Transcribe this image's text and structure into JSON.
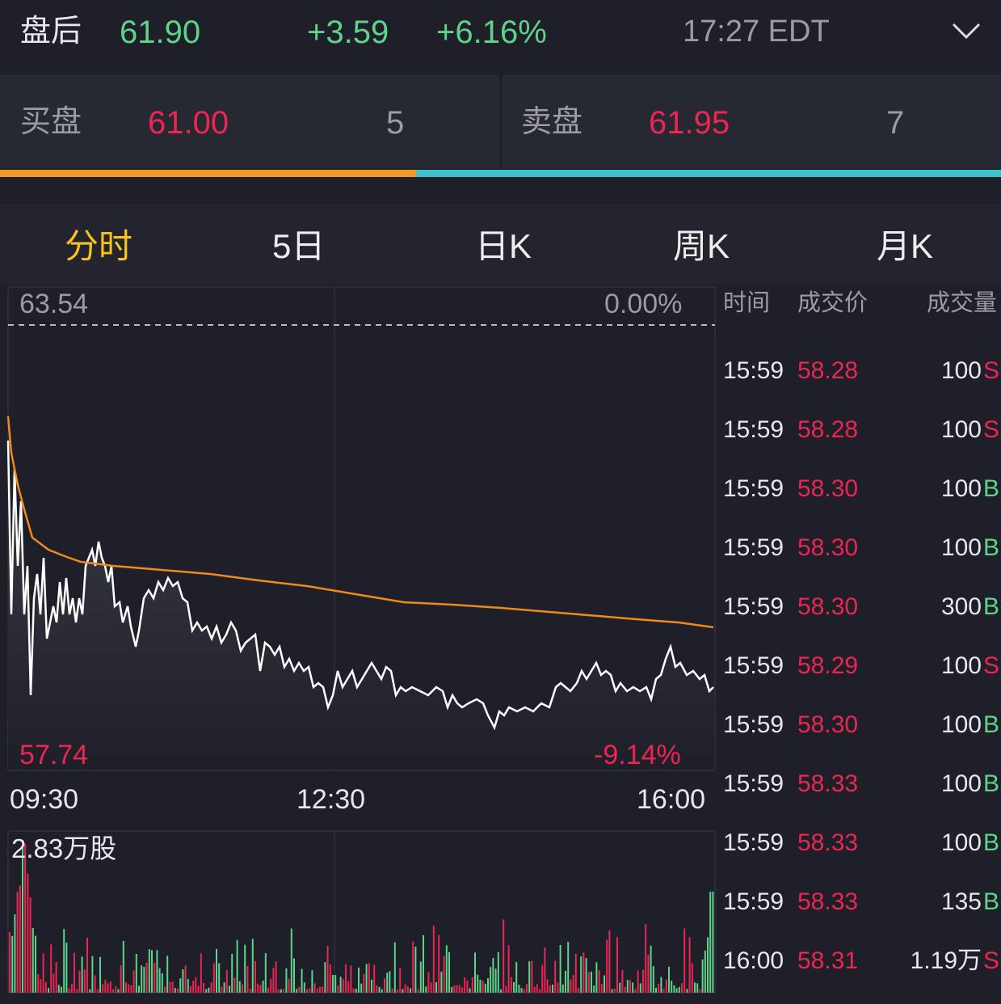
{
  "header": {
    "session": "盘后",
    "price": "61.90",
    "change": "+3.59",
    "change_pct": "+6.16%",
    "time": "17:27 EDT"
  },
  "bid": {
    "label": "买盘",
    "price": "61.00",
    "size": "5"
  },
  "ask": {
    "label": "卖盘",
    "price": "61.95",
    "size": "7"
  },
  "tabs": [
    "分时",
    "5日",
    "日K",
    "周K",
    "月K"
  ],
  "chart": {
    "high": "63.54",
    "high_pct": "0.00%",
    "low": "57.74",
    "low_pct": "-9.14%",
    "times": [
      "09:30",
      "12:30",
      "16:00"
    ],
    "volume_max": "2.83万股"
  },
  "trades": {
    "columns": [
      "时间",
      "成交价",
      "成交量"
    ],
    "rows": [
      [
        "15:59",
        "58.28",
        "100",
        "S"
      ],
      [
        "15:59",
        "58.28",
        "100",
        "S"
      ],
      [
        "15:59",
        "58.30",
        "100",
        "B"
      ],
      [
        "15:59",
        "58.30",
        "100",
        "B"
      ],
      [
        "15:59",
        "58.30",
        "300",
        "B"
      ],
      [
        "15:59",
        "58.29",
        "100",
        "S"
      ],
      [
        "15:59",
        "58.30",
        "100",
        "B"
      ],
      [
        "15:59",
        "58.33",
        "100",
        "B"
      ],
      [
        "15:59",
        "58.33",
        "100",
        "B"
      ],
      [
        "15:59",
        "58.33",
        "135",
        "B"
      ],
      [
        "16:00",
        "58.31",
        "1.19万",
        "S"
      ]
    ]
  }
}
